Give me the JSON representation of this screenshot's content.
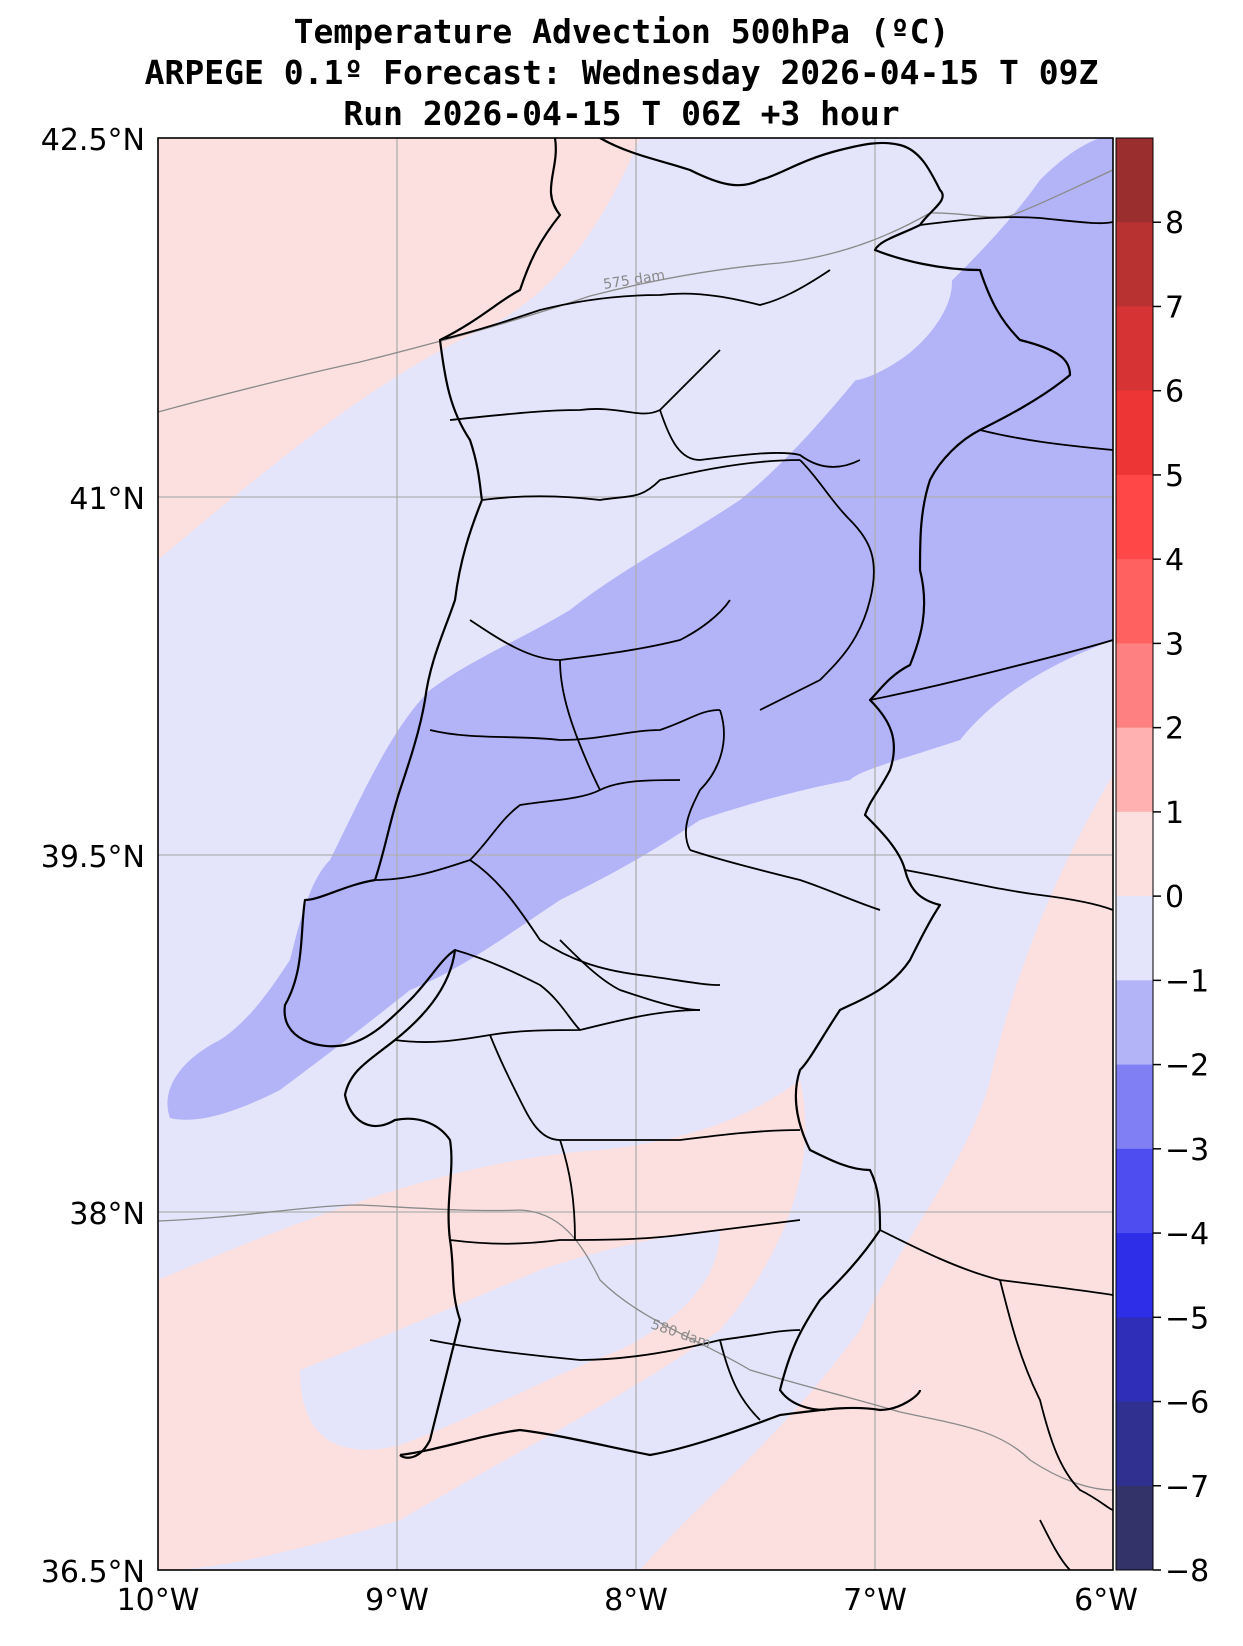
{
  "header": {
    "title_line1": "Temperature Advection  500hPa (ºC)",
    "title_line2": "ARPEGE 0.1º Forecast: Wednesday 2026-04-15 T 09Z",
    "title_line3": "Run 2026-04-15 T 06Z +3 hour"
  },
  "map": {
    "region": "Portugal",
    "lat_range": [
      36.5,
      42.5
    ],
    "lon_range": [
      -10,
      -6
    ],
    "lat_ticks": [
      "42.5°N",
      "41°N",
      "39.5°N",
      "38°N",
      "36.5°N"
    ],
    "lon_ticks": [
      "10°W",
      "9°W",
      "8°W",
      "7°W",
      "6°W"
    ],
    "grid": true,
    "contour_labels": [
      "575 dam",
      "580 dam"
    ],
    "shading_colors": {
      "neg_0_1": "#e4e4fa",
      "neg_1_2": "#b3b3f8",
      "pos_0_1": "#fce0e0"
    }
  },
  "colorbar": {
    "tick_labels": [
      "8",
      "7",
      "6",
      "5",
      "4",
      "3",
      "2",
      "1",
      "0",
      "−1",
      "−2",
      "−3",
      "−4",
      "−5",
      "−6",
      "−7",
      "−8"
    ],
    "colors_top_to_bottom": [
      "#9a2e2e",
      "#b83232",
      "#d63434",
      "#ee3535",
      "#ff4747",
      "#ff6060",
      "#ff8080",
      "#ffb0b0",
      "#fce0e0",
      "#e4e4fa",
      "#b3b3f8",
      "#8080f4",
      "#4d4df0",
      "#2e2ee8",
      "#2e2eb8",
      "#303090",
      "#33336a"
    ]
  }
}
